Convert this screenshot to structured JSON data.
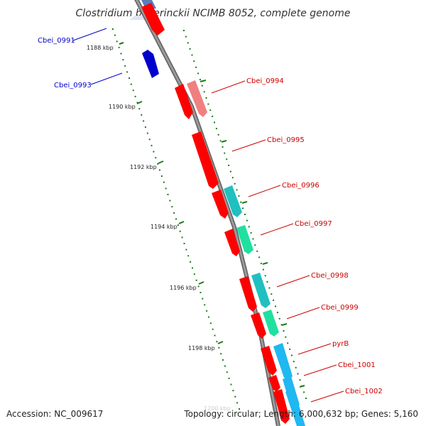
{
  "title": "Clostridium beijerinckii NCIMB 8052, complete genome",
  "footer": {
    "accession": "Accession: NC_009617",
    "summary": "Topology: circular; Length: 6,000,632 bp; Genes: 5,160"
  },
  "colors": {
    "forward_cds": "#ff0000",
    "forward_cds_light": "#f08080",
    "reverse_cds": "#0000cc",
    "teal": "#20c0c0",
    "green": "#20e0a0",
    "sky": "#20b8f0",
    "backbone": "#888888",
    "tick": "#1a7a1a",
    "label_forward": "#cc0000",
    "label_reverse": "#0000cc"
  },
  "kbp_markers": [
    {
      "label": "1188 kbp"
    },
    {
      "label": "1190 kbp"
    },
    {
      "label": "1192 kbp"
    },
    {
      "label": "1194 kbp"
    },
    {
      "label": "1196 kbp"
    },
    {
      "label": "1198 kbp"
    }
  ],
  "gene_labels": [
    {
      "name": "Cbei_0991",
      "strand": "reverse"
    },
    {
      "name": "Cbei_0993",
      "strand": "reverse"
    },
    {
      "name": "Cbei_0994",
      "strand": "forward"
    },
    {
      "name": "Cbei_0995",
      "strand": "forward"
    },
    {
      "name": "Cbei_0996",
      "strand": "forward"
    },
    {
      "name": "Cbei_0997",
      "strand": "forward"
    },
    {
      "name": "Cbei_0998",
      "strand": "forward"
    },
    {
      "name": "Cbei_0999",
      "strand": "forward"
    },
    {
      "name": "pyrB",
      "strand": "forward"
    },
    {
      "name": "Cbei_1001",
      "strand": "forward"
    },
    {
      "name": "Cbei_1002",
      "strand": "forward"
    }
  ]
}
